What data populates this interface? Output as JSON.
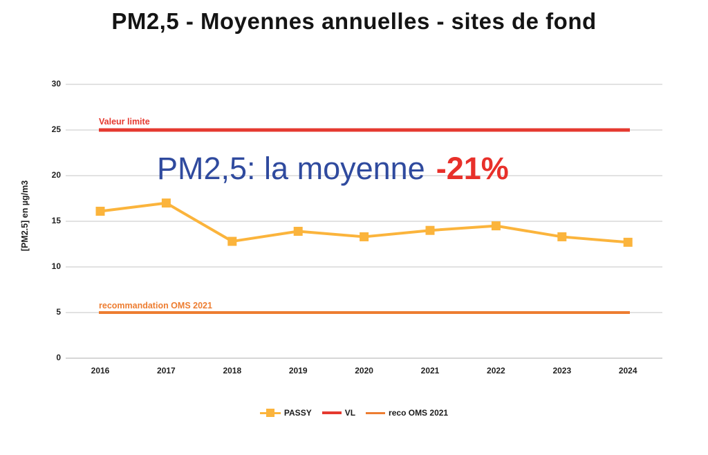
{
  "title": "PM2,5 - Moyennes annuelles - sites de fond",
  "annotation": {
    "text": "PM2,5: la moyenne",
    "highlight": "-21%"
  },
  "colors": {
    "series": "#FBB43C",
    "limit_line": "#E5392F",
    "oms_line": "#ED7D31",
    "annotation_blue": "#2F4A9E",
    "annotation_red": "#E8302A",
    "grid": "#E2E2E2",
    "grid_zero": "#D6D6D6"
  },
  "chart_data": {
    "type": "line",
    "title": "PM2,5 - Moyennes annuelles - sites de fond",
    "categories": [
      "2016",
      "2017",
      "2018",
      "2019",
      "2020",
      "2021",
      "2022",
      "2023",
      "2024"
    ],
    "series": [
      {
        "name": "PASSY",
        "values": [
          16.1,
          17.0,
          12.8,
          13.9,
          13.3,
          14.0,
          14.5,
          13.3,
          12.7
        ],
        "color": "#FBB43C",
        "marker": "square"
      }
    ],
    "reference_lines": [
      {
        "name": "VL",
        "label": "Valeur limite",
        "value": 25,
        "color": "#E5392F"
      },
      {
        "name": "reco OMS 2021",
        "label": "recommandation OMS 2021",
        "value": 5,
        "color": "#ED7D31"
      }
    ],
    "xlabel": "",
    "ylabel": "[PM2.5] en µg/m3",
    "ylim": [
      0,
      30
    ],
    "yticks": [
      0,
      5,
      10,
      15,
      20,
      25,
      30
    ],
    "grid": true,
    "legend_position": "bottom"
  },
  "legend": {
    "items": [
      {
        "label": "PASSY"
      },
      {
        "label": "VL"
      },
      {
        "label": "reco OMS 2021"
      }
    ]
  }
}
